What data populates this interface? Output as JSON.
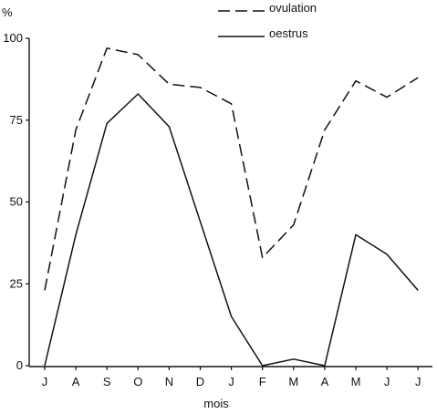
{
  "chart_data": {
    "type": "line",
    "xlabel": "mois",
    "ylabel": "%",
    "categories": [
      "J",
      "A",
      "S",
      "O",
      "N",
      "D",
      "J",
      "F",
      "M",
      "A",
      "M",
      "J",
      "J"
    ],
    "ylim": [
      0,
      100
    ],
    "yticks": [
      0,
      25,
      50,
      75,
      100
    ],
    "grid": false,
    "legend_position": "top-right",
    "series": [
      {
        "name": "ovulation",
        "style": "dashed",
        "color": "#111111",
        "values": [
          23,
          72,
          97,
          95,
          86,
          85,
          80,
          33,
          43,
          72,
          87,
          82,
          88
        ]
      },
      {
        "name": "oestrus",
        "style": "solid",
        "color": "#111111",
        "values": [
          0,
          40,
          74,
          83,
          73,
          44,
          15,
          0,
          2,
          0,
          40,
          34,
          23
        ]
      }
    ]
  }
}
